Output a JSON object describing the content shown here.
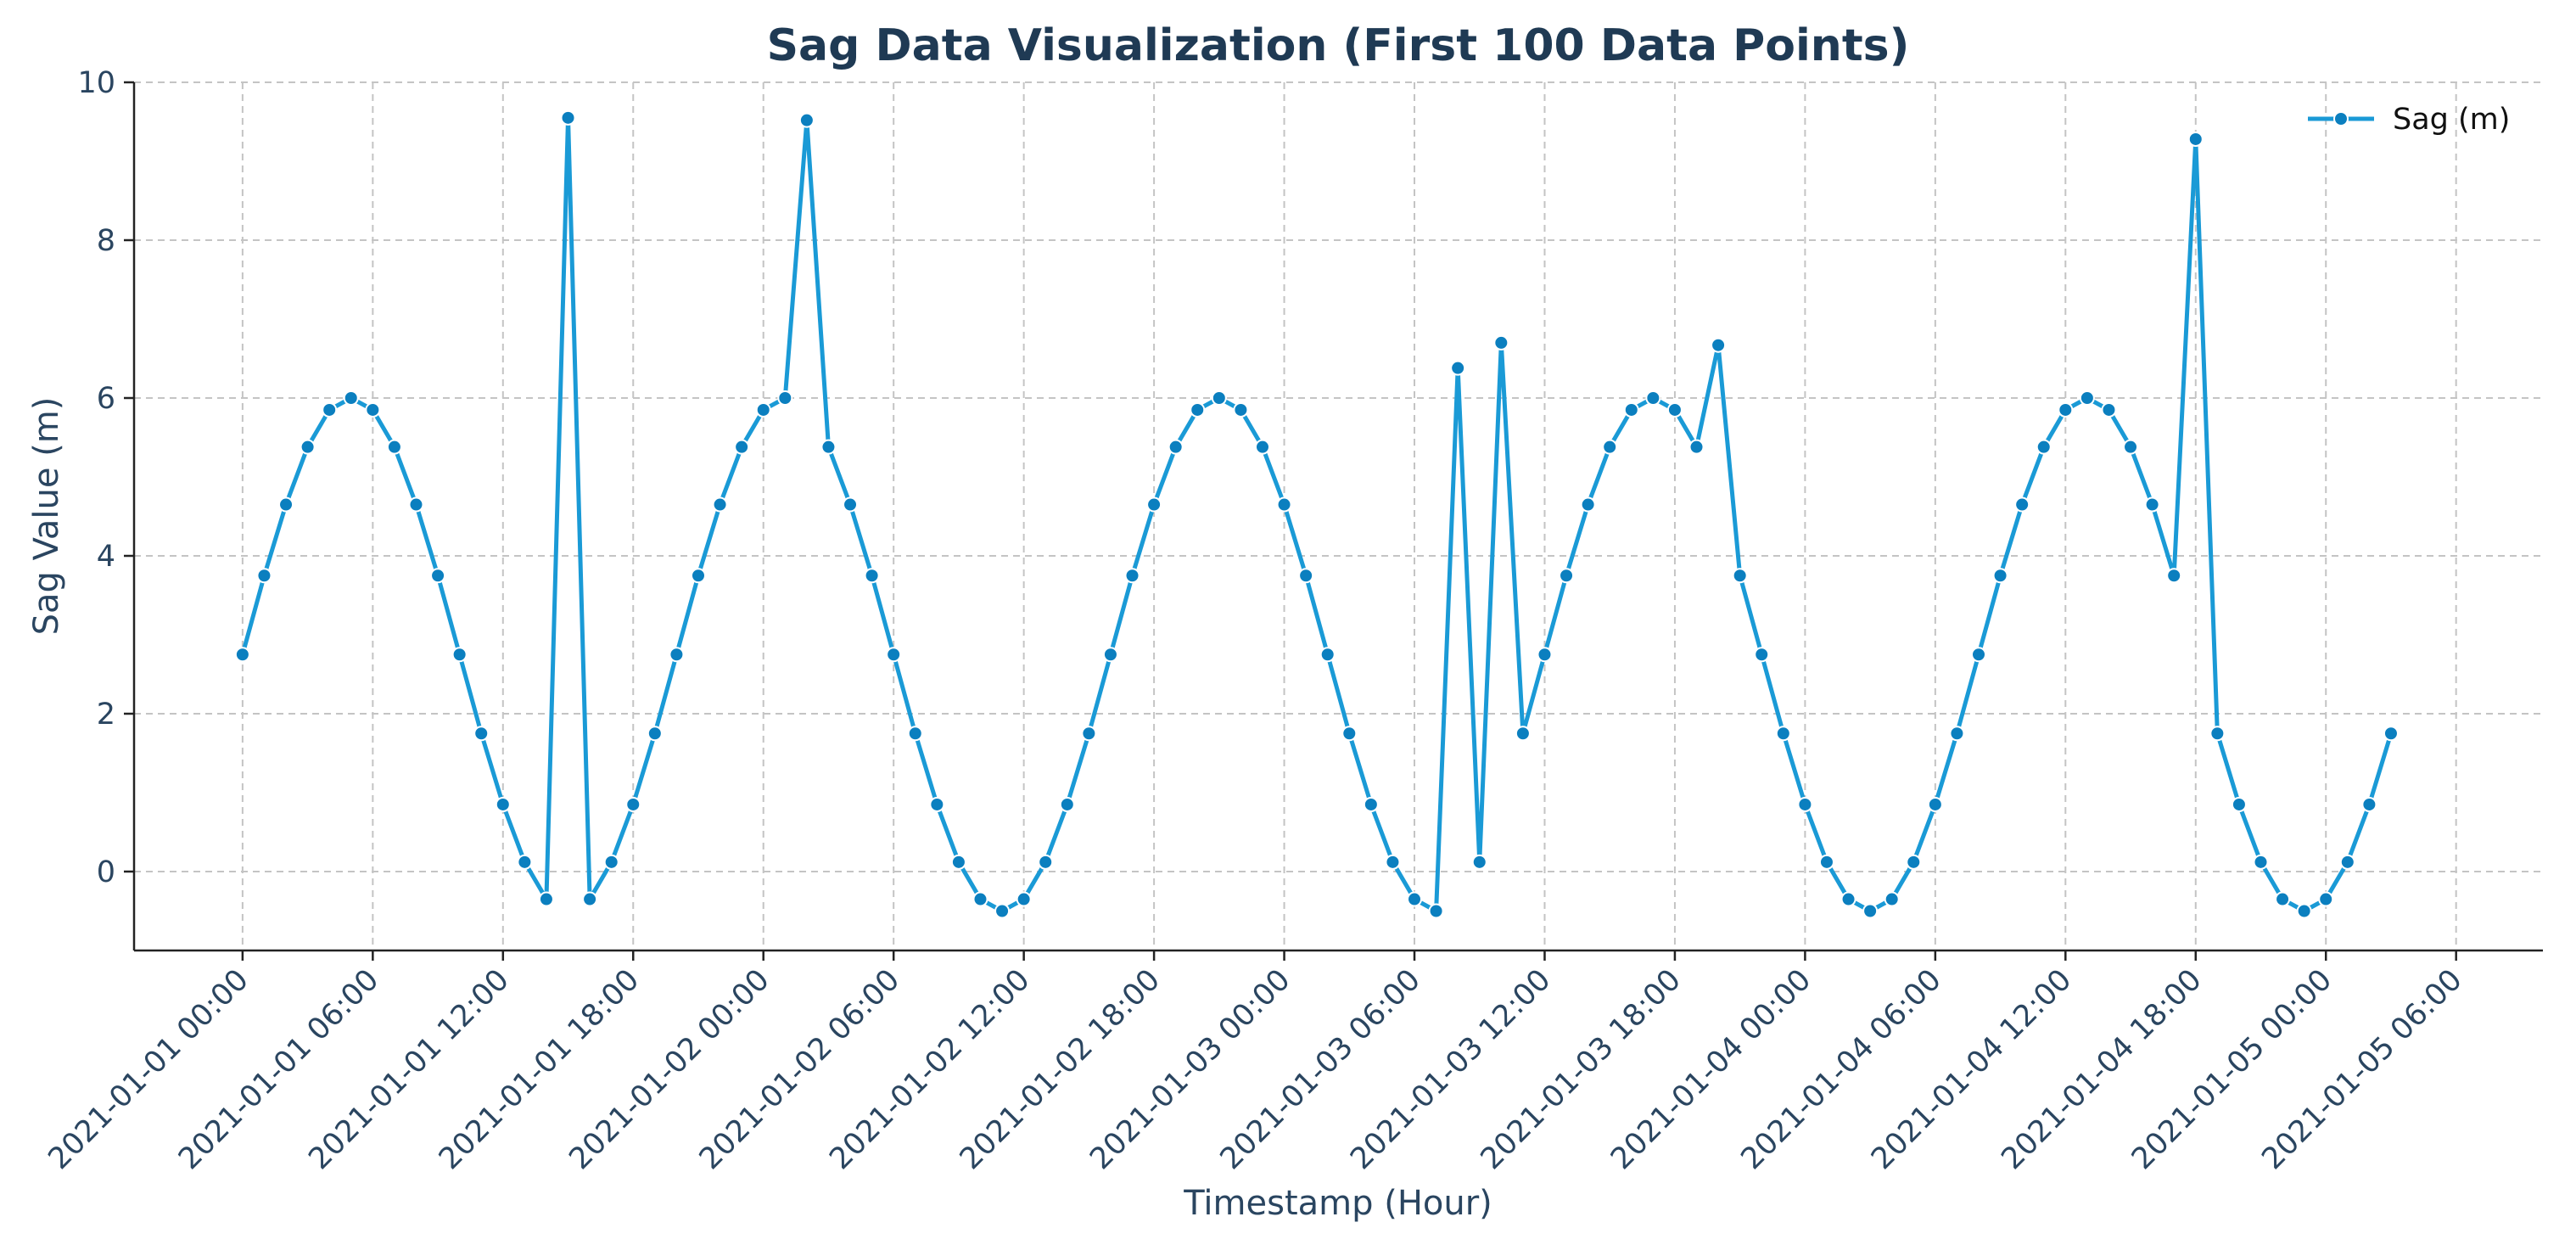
{
  "chart_data": {
    "type": "line",
    "title": "Sag Data Visualization (First 100 Data Points)",
    "xlabel": "Timestamp (Hour)",
    "ylabel": "Sag Value (m)",
    "x_start": "2021-01-01 00:00",
    "x_step_hours": 1,
    "xlim_hours": [
      -5,
      106
    ],
    "ylim": [
      -1,
      10
    ],
    "x_ticks_hours": [
      0,
      6,
      12,
      18,
      24,
      30,
      36,
      42,
      48,
      54,
      60,
      66,
      72,
      78,
      84,
      90,
      96,
      102
    ],
    "x_tick_labels": [
      "2021-01-01 00:00",
      "2021-01-01 06:00",
      "2021-01-01 12:00",
      "2021-01-01 18:00",
      "2021-01-02 00:00",
      "2021-01-02 06:00",
      "2021-01-02 12:00",
      "2021-01-02 18:00",
      "2021-01-03 00:00",
      "2021-01-03 06:00",
      "2021-01-03 12:00",
      "2021-01-03 18:00",
      "2021-01-04 00:00",
      "2021-01-04 06:00",
      "2021-01-04 12:00",
      "2021-01-04 18:00",
      "2021-01-05 00:00",
      "2021-01-05 06:00"
    ],
    "y_ticks": [
      0,
      2,
      4,
      6,
      8,
      10
    ],
    "y_tick_labels": [
      "0",
      "2",
      "4",
      "6",
      "8",
      "10"
    ],
    "grid": true,
    "legend_position": "top-right",
    "series": [
      {
        "name": "Sag (m)",
        "color": "#1a9ad6",
        "marker_color": "#0b7fbf",
        "values": [
          2.75,
          3.75,
          4.65,
          5.38,
          5.85,
          6.0,
          5.85,
          5.38,
          4.65,
          3.75,
          2.75,
          1.75,
          0.85,
          0.12,
          -0.35,
          9.55,
          -0.35,
          0.12,
          0.85,
          1.75,
          2.75,
          3.75,
          4.65,
          5.38,
          5.85,
          6.0,
          9.52,
          5.38,
          4.65,
          3.75,
          2.75,
          1.75,
          0.85,
          0.12,
          -0.35,
          -0.5,
          -0.35,
          0.12,
          0.85,
          1.75,
          2.75,
          3.75,
          4.65,
          5.38,
          5.85,
          6.0,
          5.85,
          5.38,
          4.65,
          3.75,
          2.75,
          1.75,
          0.85,
          0.12,
          -0.35,
          -0.5,
          6.38,
          0.12,
          6.7,
          1.75,
          2.75,
          3.75,
          4.65,
          5.38,
          5.85,
          6.0,
          5.85,
          5.38,
          6.67,
          3.75,
          2.75,
          1.75,
          0.85,
          0.12,
          -0.35,
          -0.5,
          -0.35,
          0.12,
          0.85,
          1.75,
          2.75,
          3.75,
          4.65,
          5.38,
          5.85,
          6.0,
          5.85,
          5.38,
          4.65,
          3.75,
          9.28,
          1.75,
          0.85,
          0.12,
          -0.35,
          -0.5,
          -0.35,
          0.12,
          0.85,
          1.75
        ]
      }
    ]
  },
  "colors": {
    "title": "#1f3a54",
    "axis_text": "#2a4560",
    "line": "#1a9ad6",
    "marker": "#0b7fbf"
  }
}
